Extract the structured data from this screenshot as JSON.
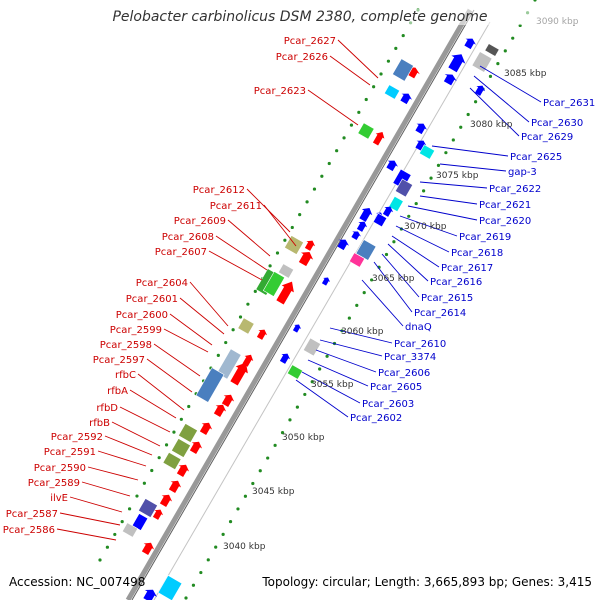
{
  "title": "Pelobacter carbinolicus DSM 2380, complete genome",
  "accession": "Accession: NC_007498",
  "summary": "Topology: circular; Length: 3,665,893 bp; Genes: 3,415",
  "colors": {
    "left_label": "#cc0000",
    "right_label": "#0000cc",
    "forward_gene": "#ff0000",
    "reverse_gene": "#0000ff",
    "ruler_dot": "#228b22",
    "backbone": "#999999"
  },
  "ruler_ticks": [
    "3040 kbp",
    "3045 kbp",
    "3050 kbp",
    "3055 kbp",
    "3060 kbp",
    "3065 kbp",
    "3070 kbp",
    "3075 kbp",
    "3080 kbp",
    "3085 kbp",
    "3090 kbp"
  ],
  "left_labels": [
    "Pcar_2627",
    "Pcar_2626",
    "Pcar_2623",
    "Pcar_2612",
    "Pcar_2611",
    "Pcar_2609",
    "Pcar_2608",
    "Pcar_2607",
    "Pcar_2604",
    "Pcar_2601",
    "Pcar_2600",
    "Pcar_2599",
    "Pcar_2598",
    "Pcar_2597",
    "rfbC",
    "rfbA",
    "rfbD",
    "rfbB",
    "Pcar_2592",
    "Pcar_2591",
    "Pcar_2590",
    "Pcar_2589",
    "ilvE",
    "Pcar_2587",
    "Pcar_2586"
  ],
  "right_labels": [
    "Pcar_2631",
    "Pcar_2630",
    "Pcar_2629",
    "Pcar_2625",
    "gap-3",
    "Pcar_2622",
    "Pcar_2621",
    "Pcar_2620",
    "Pcar_2619",
    "Pcar_2618",
    "Pcar_2617",
    "Pcar_2616",
    "Pcar_2615",
    "Pcar_2614",
    "dnaQ",
    "Pcar_2610",
    "Pcar_3374",
    "Pcar_2606",
    "Pcar_2605",
    "Pcar_2603",
    "Pcar_2602"
  ]
}
